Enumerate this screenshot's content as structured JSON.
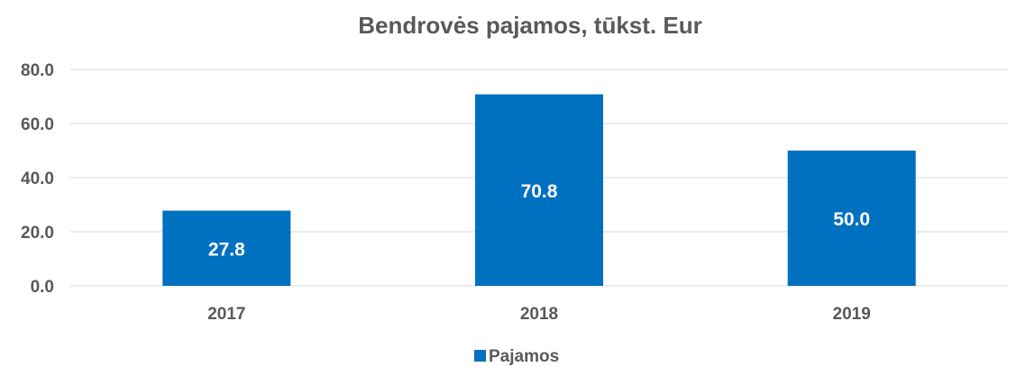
{
  "chart_data": {
    "type": "bar",
    "title": "Bendrovės pajamos, tūkst. Eur",
    "categories": [
      "2017",
      "2018",
      "2019"
    ],
    "series": [
      {
        "name": "Pajamos",
        "values": [
          27.8,
          70.8,
          50.0
        ],
        "color": "#0070C0"
      }
    ],
    "data_labels": [
      "27.8",
      "70.8",
      "50.0"
    ],
    "y_ticks": [
      "0.0",
      "20.0",
      "40.0",
      "60.0",
      "80.0"
    ],
    "ylim": [
      0,
      80
    ],
    "xlabel": "",
    "ylabel": "",
    "grid": true,
    "legend": "bottom-center"
  }
}
